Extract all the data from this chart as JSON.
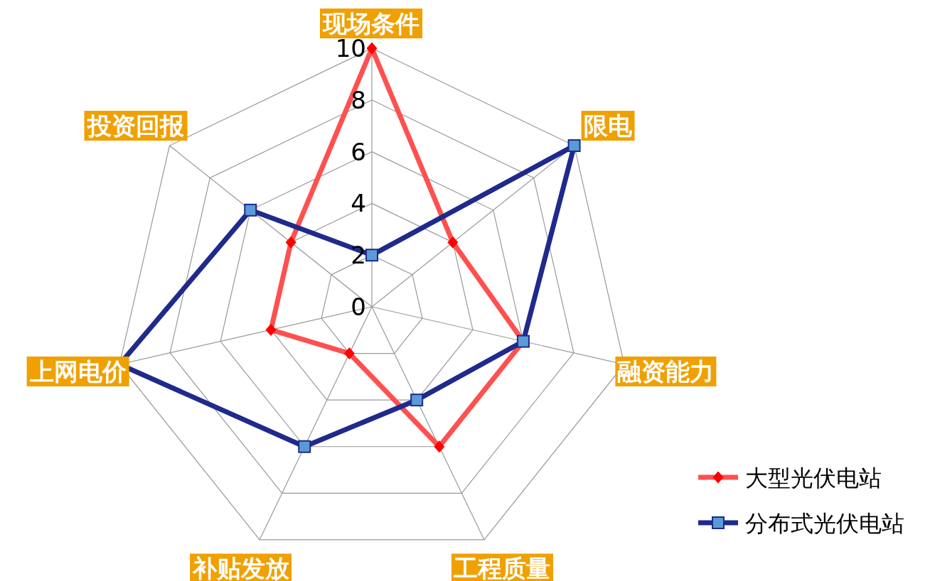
{
  "chart_data": {
    "type": "radar",
    "categories": [
      "现场条件",
      "限电",
      "融资能力",
      "工程质量",
      "补贴发放",
      "上网电价",
      "投资回报"
    ],
    "series": [
      {
        "name": "大型光伏电站",
        "color": "#ff5050",
        "marker": "diamond",
        "values": [
          10,
          4,
          6,
          6,
          2,
          4,
          4
        ]
      },
      {
        "name": "分布式光伏电站",
        "color": "#1f2a8c",
        "marker": "square",
        "values": [
          2,
          10,
          6,
          4,
          6,
          10,
          6
        ]
      }
    ],
    "ylim": [
      0,
      10
    ],
    "yticks": [
      0,
      2,
      4,
      6,
      8,
      10
    ],
    "grid": true,
    "legend": "bottom right"
  }
}
